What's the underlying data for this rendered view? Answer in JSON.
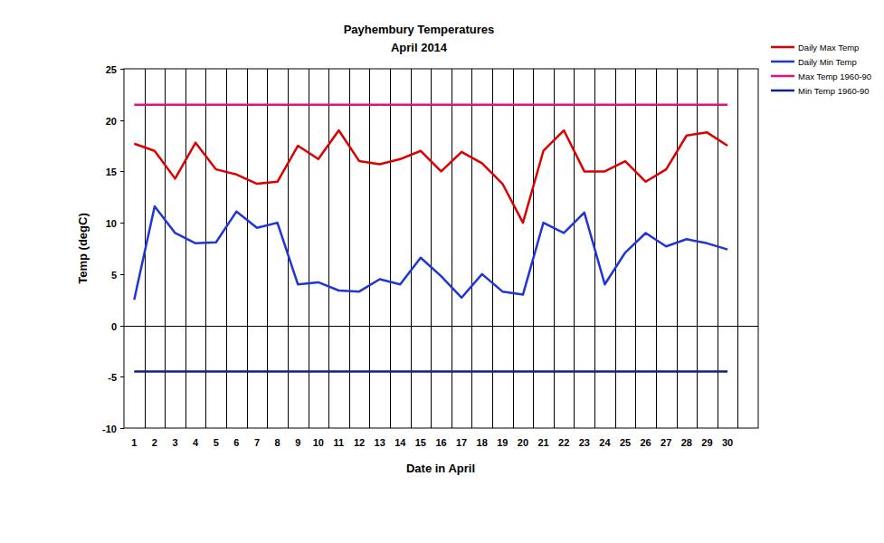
{
  "chart_data": {
    "type": "line",
    "title": "Payhembury Temperatures",
    "subtitle": "April 2014",
    "x_label": "Date in April",
    "y_label": "Temp (degC)",
    "categories": [
      "1",
      "2",
      "3",
      "4",
      "5",
      "6",
      "7",
      "8",
      "9",
      "10",
      "11",
      "12",
      "13",
      "14",
      "15",
      "16",
      "17",
      "18",
      "19",
      "20",
      "21",
      "22",
      "23",
      "24",
      "25",
      "26",
      "27",
      "28",
      "29",
      "30",
      null
    ],
    "series": [
      {
        "name": "Daily Max Temp",
        "color": "#dd0000",
        "values": [
          17.7,
          17.0,
          14.3,
          17.8,
          15.2,
          14.7,
          13.8,
          14.0,
          17.5,
          16.2,
          19.0,
          16.0,
          15.7,
          16.2,
          17.0,
          15.0,
          16.9,
          15.8,
          13.8,
          10.0,
          17.0,
          19.0,
          15.0,
          15.0,
          16.0,
          14.0,
          15.2,
          18.5,
          18.8,
          17.5,
          null
        ]
      },
      {
        "name": "Daily Min Temp",
        "color": "#1f35d6",
        "values": [
          2.5,
          11.6,
          9.0,
          8.0,
          8.1,
          11.1,
          9.5,
          10.0,
          4.0,
          4.2,
          3.4,
          3.3,
          4.5,
          4.0,
          6.6,
          4.8,
          2.7,
          5.0,
          3.3,
          3.0,
          10.0,
          9.0,
          11.0,
          4.0,
          7.1,
          9.0,
          7.7,
          8.4,
          8.0,
          7.4,
          null
        ]
      },
      {
        "name": "Max Temp 1960-90",
        "color": "#e8107e",
        "values": [
          21.5,
          21.5,
          21.5,
          21.5,
          21.5,
          21.5,
          21.5,
          21.5,
          21.5,
          21.5,
          21.5,
          21.5,
          21.5,
          21.5,
          21.5,
          21.5,
          21.5,
          21.5,
          21.5,
          21.5,
          21.5,
          21.5,
          21.5,
          21.5,
          21.5,
          21.5,
          21.5,
          21.5,
          21.5,
          21.5,
          null
        ]
      },
      {
        "name": "Min Temp 1960-90",
        "color": "#10208a",
        "values": [
          -4.5,
          -4.5,
          -4.5,
          -4.5,
          -4.5,
          -4.5,
          -4.5,
          -4.5,
          -4.5,
          -4.5,
          -4.5,
          -4.5,
          -4.5,
          -4.5,
          -4.5,
          -4.5,
          -4.5,
          -4.5,
          -4.5,
          -4.5,
          -4.5,
          -4.5,
          -4.5,
          -4.5,
          -4.5,
          -4.5,
          -4.5,
          -4.5,
          -4.5,
          -4.5,
          null
        ]
      }
    ],
    "ylim": [
      -10,
      25
    ],
    "yticks": [
      -10,
      -5,
      0,
      5,
      10,
      15,
      20,
      25
    ],
    "grid": true,
    "legend": "right"
  }
}
